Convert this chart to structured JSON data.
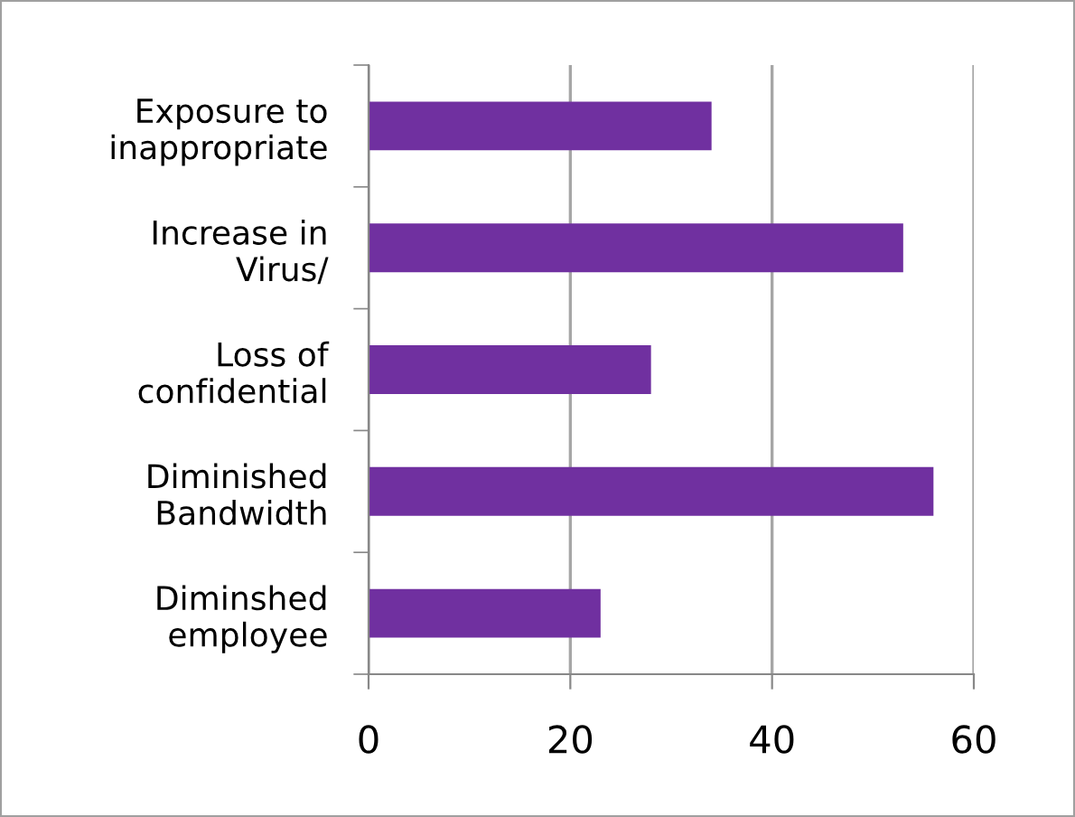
{
  "chart_data": {
    "type": "bar",
    "orientation": "horizontal",
    "categories": [
      "Exposure to\ninappropriate",
      "Increase in\nVirus/",
      "Loss of\nconfidential",
      "Diminished\nBandwidth",
      "Diminshed\nemployee"
    ],
    "values": [
      34,
      53,
      28,
      56,
      23
    ],
    "color": "#7030a0",
    "xlim": [
      0,
      60
    ],
    "xticks": [
      0,
      20,
      40,
      60
    ],
    "grid": "x"
  }
}
